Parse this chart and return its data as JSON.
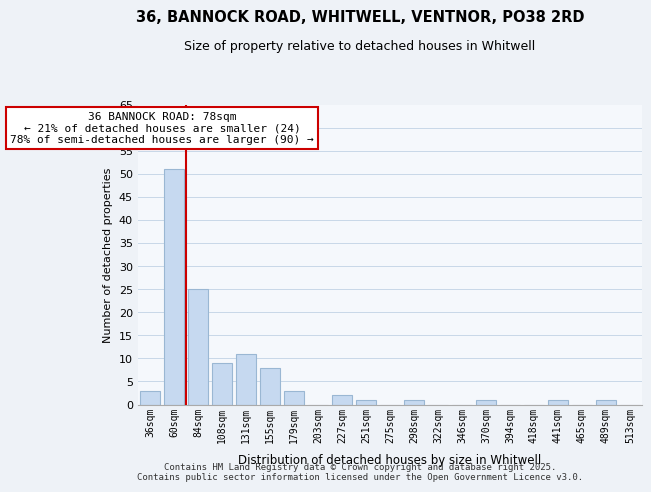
{
  "title_line1": "36, BANNOCK ROAD, WHITWELL, VENTNOR, PO38 2RD",
  "title_line2": "Size of property relative to detached houses in Whitwell",
  "xlabel": "Distribution of detached houses by size in Whitwell",
  "ylabel": "Number of detached properties",
  "bar_labels": [
    "36sqm",
    "60sqm",
    "84sqm",
    "108sqm",
    "131sqm",
    "155sqm",
    "179sqm",
    "203sqm",
    "227sqm",
    "251sqm",
    "275sqm",
    "298sqm",
    "322sqm",
    "346sqm",
    "370sqm",
    "394sqm",
    "418sqm",
    "441sqm",
    "465sqm",
    "489sqm",
    "513sqm"
  ],
  "bar_values": [
    3,
    51,
    25,
    9,
    11,
    8,
    3,
    0,
    2,
    1,
    0,
    1,
    0,
    0,
    1,
    0,
    0,
    1,
    0,
    1,
    0
  ],
  "bar_color": "#c6d9f0",
  "bar_edge_color": "#9ab7d3",
  "grid_color": "#c8d8e8",
  "annotation_text": "36 BANNOCK ROAD: 78sqm\n← 21% of detached houses are smaller (24)\n78% of semi-detached houses are larger (90) →",
  "annotation_box_color": "#ffffff",
  "annotation_box_edge": "#cc0000",
  "red_line_color": "#cc0000",
  "ylim": [
    0,
    65
  ],
  "yticks": [
    0,
    5,
    10,
    15,
    20,
    25,
    30,
    35,
    40,
    45,
    50,
    55,
    60,
    65
  ],
  "footer_line1": "Contains HM Land Registry data © Crown copyright and database right 2025.",
  "footer_line2": "Contains public sector information licensed under the Open Government Licence v3.0.",
  "bg_color": "#eef2f7",
  "plot_bg_color": "#f5f8fc"
}
